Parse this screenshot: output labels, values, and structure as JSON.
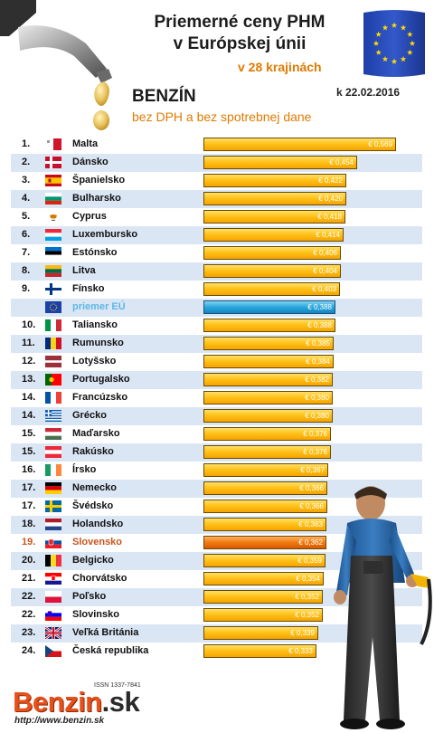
{
  "header": {
    "title_line1": "Priemerné ceny PHM",
    "title_line2": "v Európskej únii",
    "subtitle": "v 28 krajinách",
    "fuel_type": "BENZÍN",
    "fuel_note": "bez DPH a bez spotrebnej dane",
    "date": "k 22.02.2016"
  },
  "footer": {
    "issn": "ISSN 1337-7841",
    "logo_main": "Benzin",
    "logo_tld": ".sk",
    "url": "http://www.benzin.sk"
  },
  "colors": {
    "bar": "#ffc21a",
    "eu_average_bar": "#2aa6dc",
    "highlight_bar": "#f07a10",
    "row_stripe": "#dbe6f5",
    "accent_text": "#e07a00"
  },
  "chart_data": {
    "type": "bar",
    "orientation": "horizontal",
    "currency": "€",
    "xlim": [
      0,
      0.6
    ],
    "rows": [
      {
        "rank": "1.",
        "country": "Malta",
        "flag": "mt",
        "value": 0.569,
        "label": "€ 0,569"
      },
      {
        "rank": "2.",
        "country": "Dánsko",
        "flag": "dk",
        "value": 0.454,
        "label": "€ 0,454"
      },
      {
        "rank": "3.",
        "country": "Španielsko",
        "flag": "es",
        "value": 0.422,
        "label": "€ 0,422"
      },
      {
        "rank": "4.",
        "country": "Bulharsko",
        "flag": "bg",
        "value": 0.42,
        "label": "€ 0,420"
      },
      {
        "rank": "5.",
        "country": "Cyprus",
        "flag": "cy",
        "value": 0.418,
        "label": "€ 0,418"
      },
      {
        "rank": "6.",
        "country": "Luxembursko",
        "flag": "lu",
        "value": 0.414,
        "label": "€ 0,414"
      },
      {
        "rank": "7.",
        "country": "Estónsko",
        "flag": "ee",
        "value": 0.406,
        "label": "€ 0,406"
      },
      {
        "rank": "8.",
        "country": "Litva",
        "flag": "lt",
        "value": 0.404,
        "label": "€ 0,404"
      },
      {
        "rank": "9.",
        "country": "Fínsko",
        "flag": "fi",
        "value": 0.403,
        "label": "€ 0,403"
      },
      {
        "rank": "",
        "country": "priemer EÚ",
        "flag": "eu",
        "value": 0.388,
        "label": "€ 0,388",
        "kind": "eu"
      },
      {
        "rank": "10.",
        "country": "Taliansko",
        "flag": "it",
        "value": 0.388,
        "label": "€ 0,388"
      },
      {
        "rank": "11.",
        "country": "Rumunsko",
        "flag": "ro",
        "value": 0.385,
        "label": "€ 0,385"
      },
      {
        "rank": "12.",
        "country": "Lotyšsko",
        "flag": "lv",
        "value": 0.384,
        "label": "€ 0,384"
      },
      {
        "rank": "13.",
        "country": "Portugalsko",
        "flag": "pt",
        "value": 0.382,
        "label": "€ 0,382"
      },
      {
        "rank": "14.",
        "country": "Francúzsko",
        "flag": "fr",
        "value": 0.38,
        "label": "€ 0,380"
      },
      {
        "rank": "14.",
        "country": "Grécko",
        "flag": "gr",
        "value": 0.38,
        "label": "€ 0,380"
      },
      {
        "rank": "15.",
        "country": "Maďarsko",
        "flag": "hu",
        "value": 0.376,
        "label": "€ 0,376"
      },
      {
        "rank": "15.",
        "country": "Rakúsko",
        "flag": "at",
        "value": 0.376,
        "label": "€ 0,376"
      },
      {
        "rank": "16.",
        "country": "Írsko",
        "flag": "ie",
        "value": 0.367,
        "label": "€ 0,367"
      },
      {
        "rank": "17.",
        "country": "Nemecko",
        "flag": "de",
        "value": 0.366,
        "label": "€ 0,366"
      },
      {
        "rank": "17.",
        "country": "Švédsko",
        "flag": "se",
        "value": 0.366,
        "label": "€ 0,366"
      },
      {
        "rank": "18.",
        "country": "Holandsko",
        "flag": "nl",
        "value": 0.363,
        "label": "€ 0,363"
      },
      {
        "rank": "19.",
        "country": "Slovensko",
        "flag": "sk",
        "value": 0.362,
        "label": "€ 0,362",
        "kind": "highlight"
      },
      {
        "rank": "20.",
        "country": "Belgicko",
        "flag": "be",
        "value": 0.359,
        "label": "€ 0,359"
      },
      {
        "rank": "21.",
        "country": "Chorvátsko",
        "flag": "hr",
        "value": 0.354,
        "label": "€ 0,354"
      },
      {
        "rank": "22.",
        "country": "Poľsko",
        "flag": "pl",
        "value": 0.352,
        "label": "€ 0,352"
      },
      {
        "rank": "22.",
        "country": "Slovinsko",
        "flag": "si",
        "value": 0.352,
        "label": "€ 0,352"
      },
      {
        "rank": "23.",
        "country": "Veľká Británia",
        "flag": "gb",
        "value": 0.339,
        "label": "€ 0,339"
      },
      {
        "rank": "24.",
        "country": "Česká republika",
        "flag": "cz",
        "value": 0.333,
        "label": "€ 0,333"
      }
    ]
  }
}
